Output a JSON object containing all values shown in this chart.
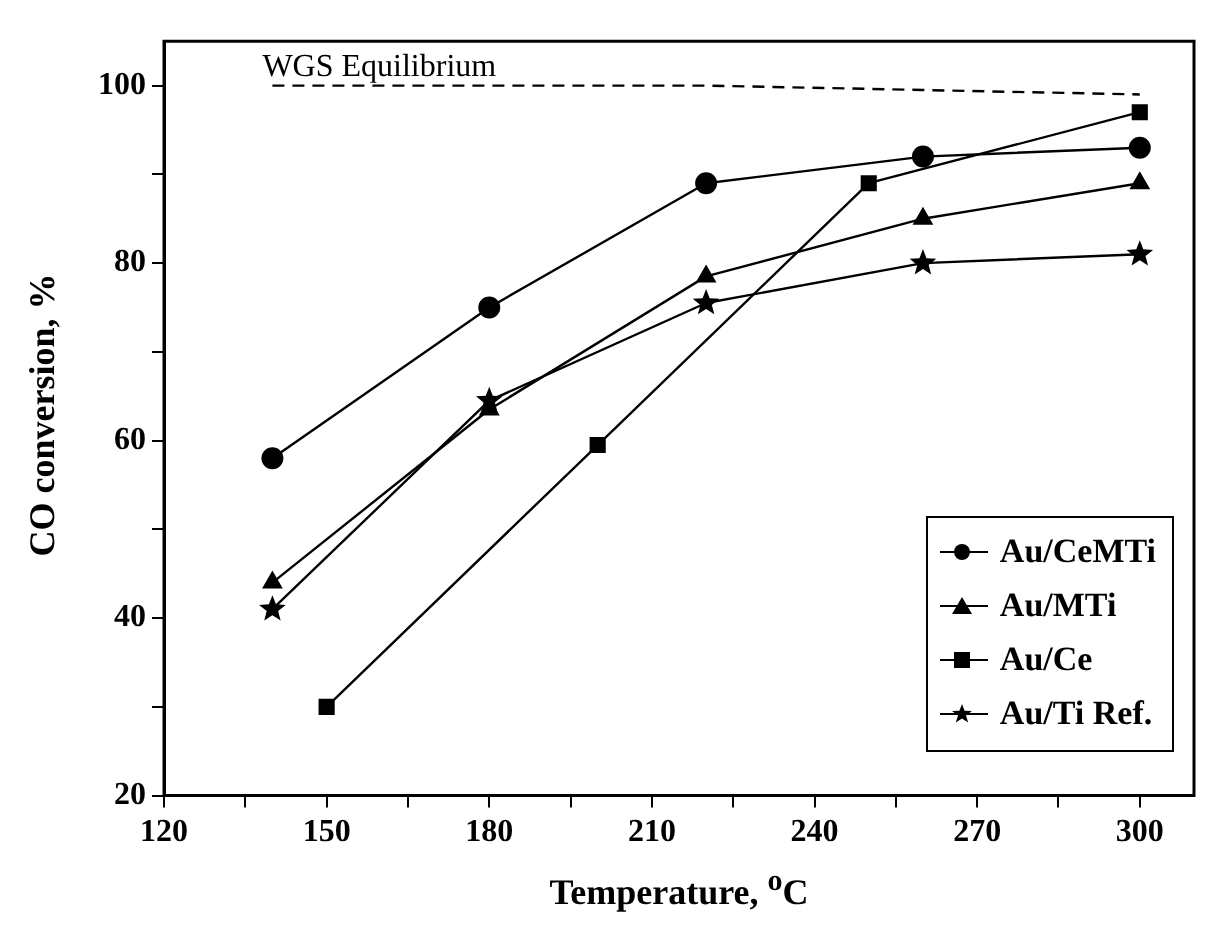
{
  "chart_data": {
    "type": "line",
    "xlabel": "Temperature, $^{o}$C",
    "ylabel": "CO conversion, %",
    "xlim": [
      120,
      310
    ],
    "ylim": [
      20,
      105
    ],
    "xticks": [
      120,
      {
        "value": 135,
        "label": null
      },
      150,
      {
        "value": 165,
        "label": null
      },
      180,
      {
        "value": 195,
        "label": null
      },
      210,
      {
        "value": 225,
        "label": null
      },
      240,
      {
        "value": 255,
        "label": null
      },
      270,
      {
        "value": 285,
        "label": null
      },
      300
    ],
    "yticks": [
      20,
      {
        "value": 30,
        "label": null
      },
      40,
      {
        "value": 50,
        "label": null
      },
      60,
      {
        "value": 70,
        "label": null
      },
      80,
      {
        "value": 90,
        "label": null
      },
      100
    ],
    "grid": false,
    "legend": "bottom right",
    "series": [
      {
        "name": "WGS Equilibrium",
        "color": "#000000",
        "x": [
          140,
          180,
          220,
          260,
          300
        ],
        "values": [
          100,
          100,
          100,
          99.5,
          99
        ],
        "marker": "none",
        "line_style": "dashed"
      },
      {
        "name": "Au/CeMTi",
        "color": "#000000",
        "x": [
          140,
          180,
          220,
          260,
          300
        ],
        "values": [
          58,
          75,
          89,
          92,
          93
        ],
        "marker": "circle"
      },
      {
        "name": "Au/MTi",
        "color": "#000000",
        "x": [
          140,
          180,
          220,
          260,
          300
        ],
        "values": [
          44,
          63.5,
          78.5,
          85,
          89
        ],
        "marker": "triangle"
      },
      {
        "name": "Au/Ce",
        "color": "#000000",
        "x": [
          150,
          200,
          250,
          300
        ],
        "values": [
          30,
          59.5,
          89,
          97
        ],
        "marker": "square"
      },
      {
        "name": "Au/Ti Ref.",
        "color": "#000000",
        "x": [
          140,
          180,
          220,
          260,
          300
        ],
        "values": [
          41,
          64.5,
          75.5,
          80,
          81
        ],
        "marker": "star"
      }
    ]
  }
}
